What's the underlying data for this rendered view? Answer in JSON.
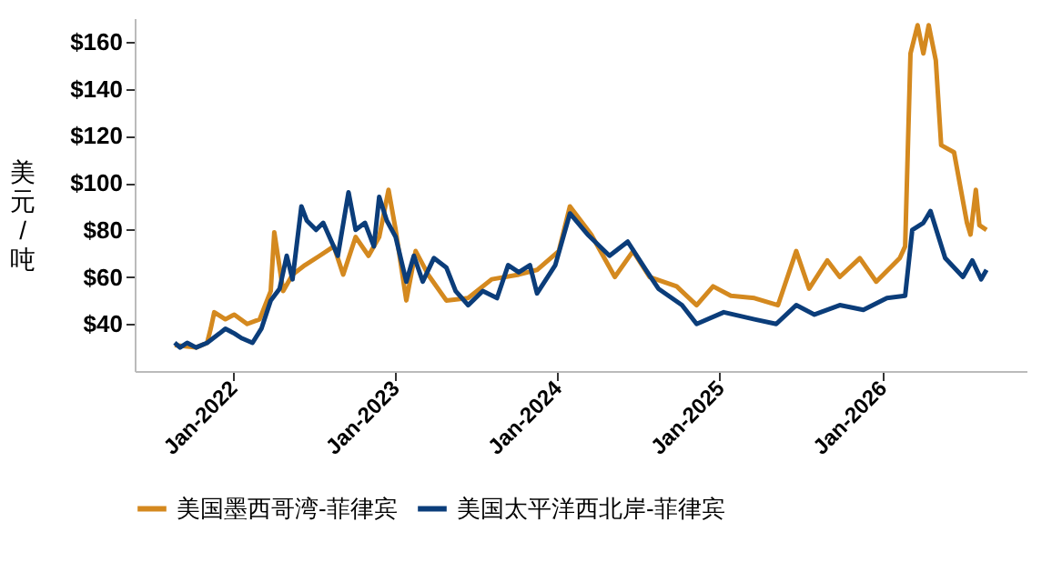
{
  "chart_data": {
    "type": "line",
    "ylabel": "美元/吨",
    "xlim": [
      "2021-05-26",
      "2026-11-22"
    ],
    "xticks": [
      {
        "value": "2022-01-01",
        "label": "Jan-2022"
      },
      {
        "value": "2023-01-01",
        "label": "Jan-2023"
      },
      {
        "value": "2024-01-01",
        "label": "Jan-2024"
      },
      {
        "value": "2025-01-01",
        "label": "Jan-2025"
      },
      {
        "value": "2026-01-01",
        "label": "Jan-2026"
      }
    ],
    "ylim": [
      20,
      170
    ],
    "yticks": [
      {
        "value": 40,
        "label": "$40"
      },
      {
        "value": 60,
        "label": "$60"
      },
      {
        "value": 80,
        "label": "$80"
      },
      {
        "value": 100,
        "label": "$100"
      },
      {
        "value": 120,
        "label": "$120"
      },
      {
        "value": 140,
        "label": "$140"
      },
      {
        "value": 160,
        "label": "$160"
      }
    ],
    "grid": false,
    "legend": "bottom",
    "marker": "none",
    "line_style": "solid",
    "series": [
      {
        "name": "美国墨西哥湾-菲律宾",
        "color": "#d4891f",
        "x": [
          "2021-08-24",
          "2021-10-11",
          "2021-11-05",
          "2021-11-13",
          "2021-11-21",
          "2021-12-16",
          "2022-01-05",
          "2022-02-03",
          "2022-03-03",
          "2022-03-28",
          "2022-04-05",
          "2022-04-25",
          "2022-05-16",
          "2022-06-13",
          "2022-07-16",
          "2022-08-17",
          "2022-09-07",
          "2022-10-05",
          "2022-11-03",
          "2022-11-27",
          "2022-12-18",
          "2023-01-03",
          "2023-01-27",
          "2023-02-17",
          "2023-03-17",
          "2023-04-27",
          "2023-06-15",
          "2023-08-07",
          "2023-10-07",
          "2023-11-17",
          "2024-01-05",
          "2024-01-30",
          "2024-03-18",
          "2024-05-10",
          "2024-06-20",
          "2024-07-27",
          "2024-09-26",
          "2024-11-10",
          "2024-12-17",
          "2025-01-26",
          "2025-03-20",
          "2025-05-12",
          "2025-06-22",
          "2025-07-21",
          "2025-08-31",
          "2025-09-28",
          "2025-11-12",
          "2025-12-19",
          "2026-02-10",
          "2026-02-22",
          "2026-03-06",
          "2026-03-22",
          "2026-04-04",
          "2026-04-16",
          "2026-05-02",
          "2026-05-14",
          "2026-06-12",
          "2026-07-11",
          "2026-07-19",
          "2026-07-31",
          "2026-08-08",
          "2026-08-24"
        ],
        "values": [
          31,
          30,
          32,
          38,
          45,
          42,
          44,
          40,
          42,
          54,
          79,
          54,
          61,
          65,
          69,
          73,
          61,
          77,
          69,
          77,
          97,
          80,
          50,
          71,
          61,
          50,
          51,
          59,
          61,
          63,
          71,
          90,
          78,
          60,
          71,
          60,
          56,
          48,
          56,
          52,
          51,
          48,
          71,
          55,
          67,
          60,
          68,
          58,
          68,
          73,
          155,
          167,
          155,
          167,
          152,
          116,
          113,
          83,
          78,
          97,
          82,
          80
        ]
      },
      {
        "name": "美国太平洋西北岸-菲律宾",
        "color": "#0b3d7a",
        "x": [
          "2021-08-24",
          "2021-09-05",
          "2021-09-21",
          "2021-10-11",
          "2021-11-05",
          "2021-12-03",
          "2021-12-16",
          "2022-01-05",
          "2022-01-21",
          "2022-02-15",
          "2022-03-07",
          "2022-03-28",
          "2022-04-17",
          "2022-05-03",
          "2022-05-16",
          "2022-06-05",
          "2022-06-17",
          "2022-07-08",
          "2022-07-24",
          "2022-08-26",
          "2022-09-19",
          "2022-10-05",
          "2022-10-26",
          "2022-11-15",
          "2022-11-27",
          "2022-12-14",
          "2023-01-03",
          "2023-01-27",
          "2023-02-13",
          "2023-03-05",
          "2023-03-30",
          "2023-04-27",
          "2023-05-18",
          "2023-06-15",
          "2023-07-18",
          "2023-08-19",
          "2023-09-13",
          "2023-10-07",
          "2023-11-01",
          "2023-11-17",
          "2023-12-28",
          "2024-01-30",
          "2024-03-10",
          "2024-04-28",
          "2024-06-08",
          "2024-07-19",
          "2024-08-16",
          "2024-10-08",
          "2024-11-10",
          "2025-01-10",
          "2025-03-20",
          "2025-05-08",
          "2025-06-22",
          "2025-08-02",
          "2025-09-28",
          "2025-11-20",
          "2026-01-12",
          "2026-02-22",
          "2026-03-10",
          "2026-04-04",
          "2026-04-20",
          "2026-05-23",
          "2026-07-02",
          "2026-07-23",
          "2026-08-12",
          "2026-08-24"
        ],
        "values": [
          32,
          30,
          32,
          30,
          32,
          36,
          38,
          36,
          34,
          32,
          38,
          50,
          55,
          69,
          59,
          90,
          84,
          80,
          83,
          69,
          96,
          80,
          83,
          73,
          94,
          84,
          77,
          58,
          69,
          58,
          68,
          64,
          54,
          48,
          54,
          51,
          65,
          62,
          65,
          53,
          65,
          87,
          78,
          69,
          75,
          63,
          55,
          48,
          40,
          45,
          42,
          40,
          48,
          44,
          48,
          46,
          51,
          52,
          80,
          83,
          88,
          68,
          60,
          67,
          59,
          63
        ]
      }
    ]
  }
}
